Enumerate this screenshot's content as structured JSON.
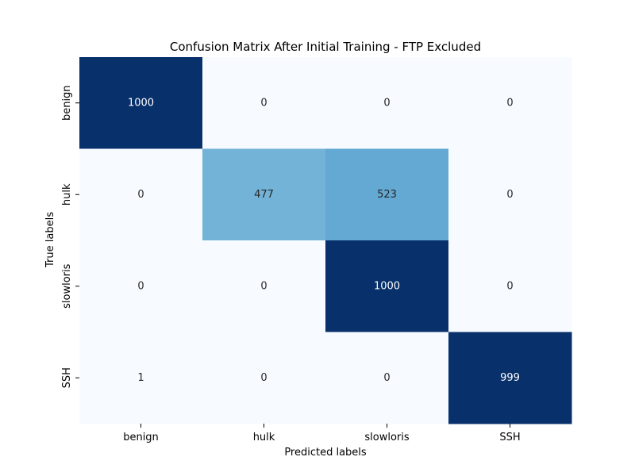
{
  "chart_data": {
    "type": "heatmap",
    "title": "Confusion Matrix After Initial Training - FTP Excluded",
    "xlabel": "Predicted labels",
    "ylabel": "True labels",
    "x_categories": [
      "benign",
      "hulk",
      "slowloris",
      "SSH"
    ],
    "y_categories": [
      "benign",
      "hulk",
      "slowloris",
      "SSH"
    ],
    "values": [
      [
        1000,
        0,
        0,
        0
      ],
      [
        0,
        477,
        523,
        0
      ],
      [
        0,
        0,
        1000,
        0
      ],
      [
        1,
        0,
        0,
        999
      ]
    ],
    "colormap": "Blues",
    "vmin": 0,
    "vmax": 1000,
    "colorbar": false,
    "grid": false
  }
}
